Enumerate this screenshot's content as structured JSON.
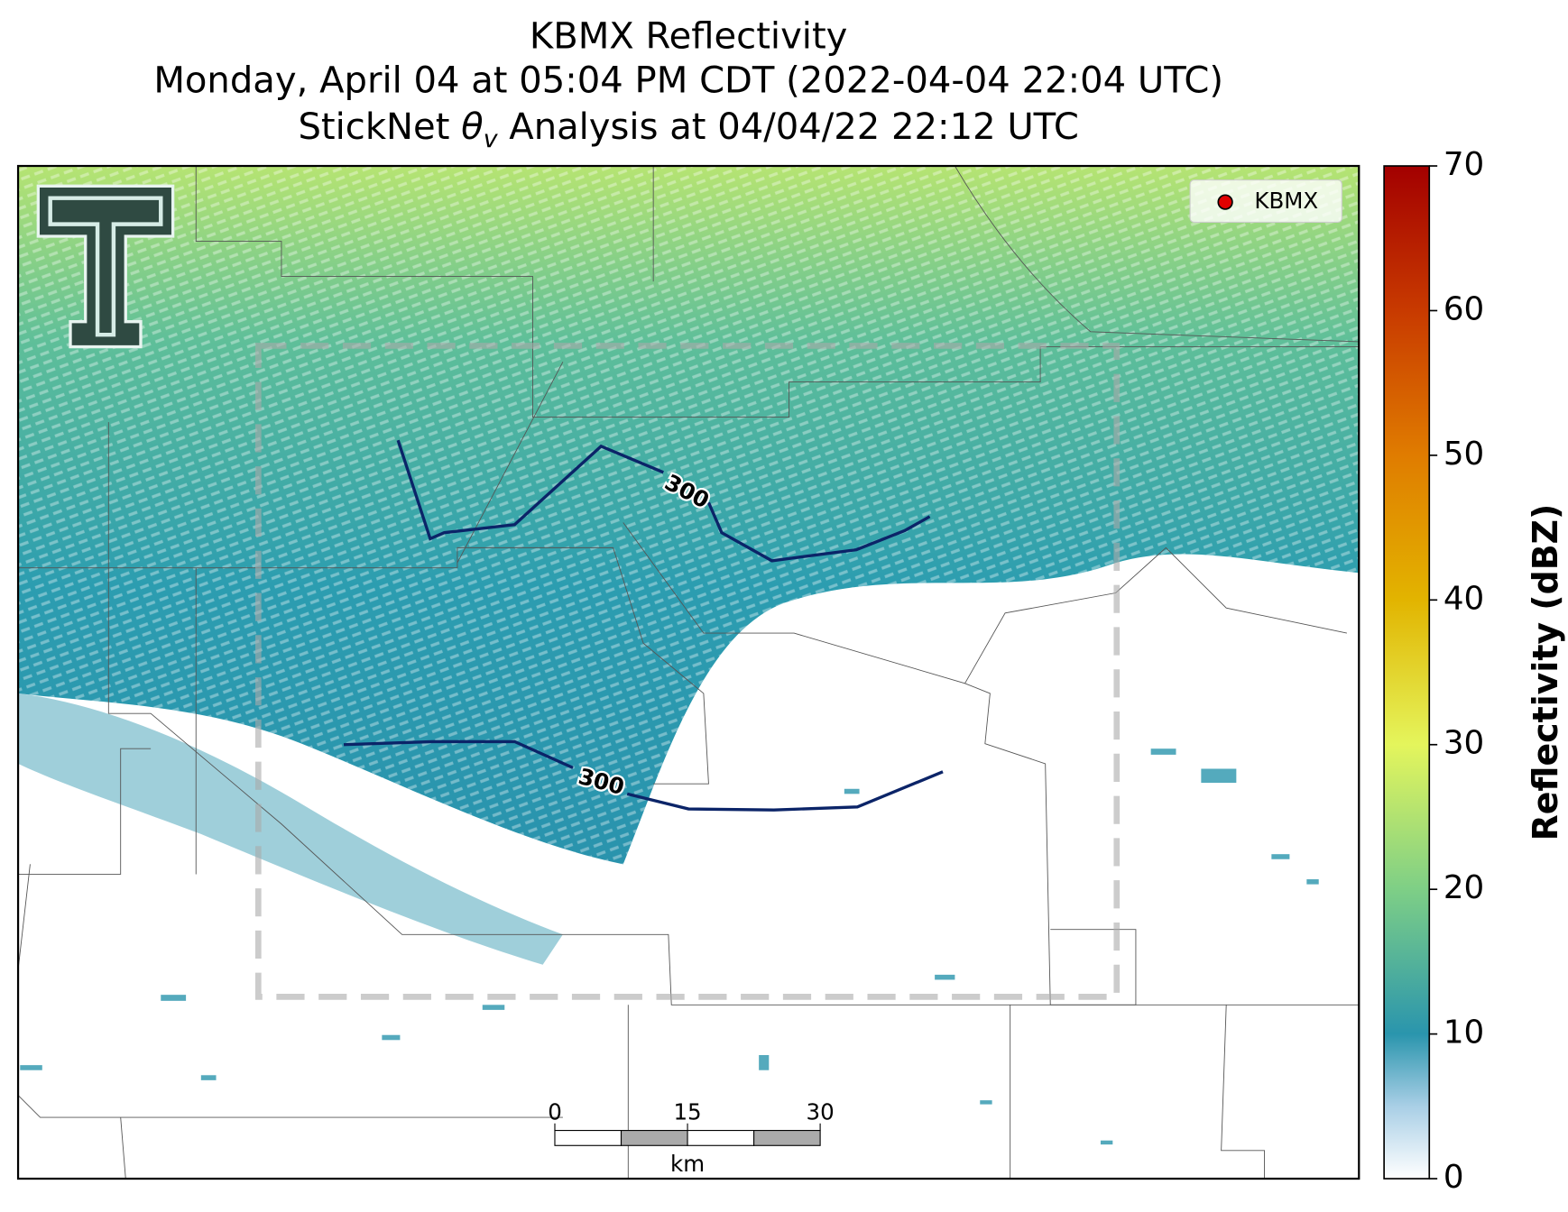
{
  "header": {
    "title": "KBMX Reflectivity",
    "subtitle": "Monday, April 04 at 05:04 PM CDT (2022-04-04 22:04 UTC)",
    "analysis_prefix": "StickNet ",
    "analysis_symbol": "θ",
    "analysis_subscript": "v",
    "analysis_suffix": " Analysis at 04/04/22 22:12 UTC"
  },
  "legend": {
    "label": "KBMX",
    "color": "#e00000"
  },
  "contours": [
    {
      "label": "300"
    },
    {
      "label": "300"
    }
  ],
  "scale_bar": {
    "ticks": [
      "0",
      "15",
      "30"
    ],
    "unit": "km"
  },
  "colorbar": {
    "label": "Reflectivity (dBZ)",
    "lim": [
      0,
      70
    ],
    "ticks": [
      0,
      10,
      20,
      30,
      40,
      50,
      60,
      70
    ],
    "colors": [
      [
        0,
        "#ffffff"
      ],
      [
        5,
        "#a9cfe6"
      ],
      [
        10,
        "#2a95ad"
      ],
      [
        20,
        "#7ecf86"
      ],
      [
        30,
        "#e4f55c"
      ],
      [
        40,
        "#e2b400"
      ],
      [
        50,
        "#e07c00"
      ],
      [
        60,
        "#c83a00"
      ],
      [
        70,
        "#a30000"
      ]
    ]
  }
}
